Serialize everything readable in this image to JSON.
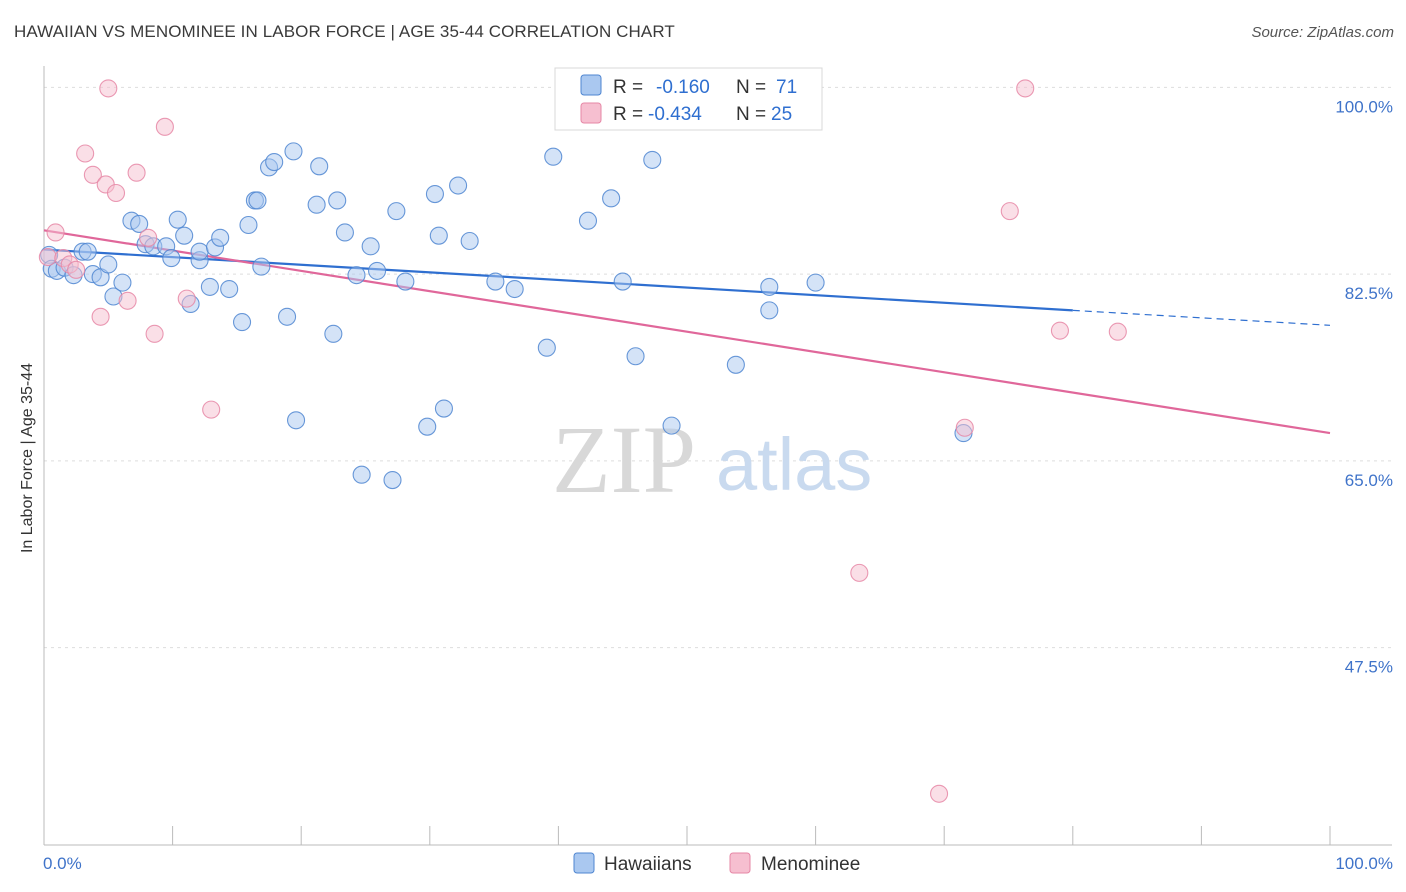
{
  "header": {
    "title": "HAWAIIAN VS MENOMINEE IN LABOR FORCE | AGE 35-44 CORRELATION CHART",
    "source": "Source: ZipAtlas.com"
  },
  "watermark": {
    "zip": "ZIP",
    "atlas": "atlas"
  },
  "colors": {
    "blue_fill": "#aac8f0",
    "blue_stroke": "#4f86d1",
    "blue_line": "#2f6fd0",
    "pink_fill": "#f6bfd0",
    "pink_stroke": "#e687a6",
    "pink_line": "#e0679a",
    "tick_text": "#3f73c9",
    "grid": "#dddddd"
  },
  "legend": {
    "rows": [
      {
        "r_label": "R = ",
        "r_value": "-0.160",
        "n_label": "N = ",
        "n_value": "71"
      },
      {
        "r_label": "R = ",
        "r_value": "-0.434",
        "n_label": "N = ",
        "n_value": "25"
      }
    ]
  },
  "chart_data": {
    "type": "scatter",
    "title": "HAWAIIAN VS MENOMINEE IN LABOR FORCE | AGE 35-44 CORRELATION CHART",
    "xlabel": "",
    "ylabel": "In Labor Force | Age 35-44",
    "xlim": [
      0,
      100
    ],
    "ylim": [
      29,
      102
    ],
    "x_tick_labels": [
      "0.0%",
      "100.0%"
    ],
    "y_ticks": [
      47.5,
      65.0,
      82.5,
      100.0
    ],
    "y_tick_labels": [
      "47.5%",
      "65.0%",
      "82.5%",
      "100.0%"
    ],
    "grid": true,
    "legend_position": "top-center and bottom",
    "series": [
      {
        "name": "Hawaiians",
        "R": -0.16,
        "N": 71,
        "trend": {
          "x0": 0,
          "y0": 84.8,
          "x1": 80,
          "y1": 79.1,
          "dash_to_x": 100,
          "dash_to_y": 77.7
        },
        "points": [
          [
            0.4,
            84.3
          ],
          [
            0.6,
            83.0
          ],
          [
            1.0,
            82.8
          ],
          [
            1.6,
            83.1
          ],
          [
            2.3,
            82.4
          ],
          [
            3.0,
            84.6
          ],
          [
            3.4,
            84.6
          ],
          [
            3.8,
            82.5
          ],
          [
            4.4,
            82.2
          ],
          [
            5.0,
            83.4
          ],
          [
            5.4,
            80.4
          ],
          [
            6.1,
            81.7
          ],
          [
            6.8,
            87.5
          ],
          [
            7.4,
            87.2
          ],
          [
            7.9,
            85.3
          ],
          [
            8.5,
            85.1
          ],
          [
            9.5,
            85.1
          ],
          [
            9.9,
            84.0
          ],
          [
            10.4,
            87.6
          ],
          [
            10.9,
            86.1
          ],
          [
            11.4,
            79.7
          ],
          [
            12.1,
            83.8
          ],
          [
            12.1,
            84.6
          ],
          [
            12.9,
            81.3
          ],
          [
            13.3,
            85.0
          ],
          [
            13.7,
            85.9
          ],
          [
            14.4,
            81.1
          ],
          [
            15.4,
            78.0
          ],
          [
            15.9,
            87.1
          ],
          [
            16.4,
            89.4
          ],
          [
            16.6,
            89.4
          ],
          [
            16.9,
            83.2
          ],
          [
            17.5,
            92.5
          ],
          [
            17.9,
            93.0
          ],
          [
            18.9,
            78.5
          ],
          [
            19.4,
            94.0
          ],
          [
            19.6,
            68.8
          ],
          [
            21.2,
            89.0
          ],
          [
            21.4,
            92.6
          ],
          [
            22.5,
            76.9
          ],
          [
            22.8,
            89.4
          ],
          [
            23.4,
            86.4
          ],
          [
            24.3,
            82.4
          ],
          [
            24.7,
            63.7
          ],
          [
            25.4,
            85.1
          ],
          [
            25.9,
            82.8
          ],
          [
            27.1,
            63.2
          ],
          [
            27.4,
            88.4
          ],
          [
            28.1,
            81.8
          ],
          [
            29.8,
            68.2
          ],
          [
            30.4,
            90.0
          ],
          [
            30.7,
            86.1
          ],
          [
            31.1,
            69.9
          ],
          [
            32.2,
            90.8
          ],
          [
            33.1,
            85.6
          ],
          [
            35.1,
            81.8
          ],
          [
            36.6,
            81.1
          ],
          [
            39.1,
            75.6
          ],
          [
            39.6,
            93.5
          ],
          [
            42.3,
            87.5
          ],
          [
            44.1,
            89.6
          ],
          [
            45.0,
            81.8
          ],
          [
            46.0,
            74.8
          ],
          [
            47.3,
            93.2
          ],
          [
            48.8,
            68.3
          ],
          [
            56.4,
            81.3
          ],
          [
            56.4,
            79.1
          ],
          [
            57.0,
            99.0
          ],
          [
            60.0,
            81.7
          ],
          [
            71.5,
            67.6
          ],
          [
            53.8,
            74.0
          ]
        ]
      },
      {
        "name": "Menominee",
        "R": -0.434,
        "N": 25,
        "trend": {
          "x0": 0,
          "y0": 86.6,
          "x1": 100,
          "y1": 67.6
        },
        "points": [
          [
            0.3,
            84.1
          ],
          [
            0.9,
            86.4
          ],
          [
            1.5,
            84.0
          ],
          [
            2.0,
            83.4
          ],
          [
            2.5,
            82.9
          ],
          [
            3.2,
            93.8
          ],
          [
            3.8,
            91.8
          ],
          [
            4.4,
            78.5
          ],
          [
            4.8,
            90.9
          ],
          [
            5.0,
            99.9
          ],
          [
            5.6,
            90.1
          ],
          [
            6.5,
            80.0
          ],
          [
            7.2,
            92.0
          ],
          [
            8.1,
            85.9
          ],
          [
            8.6,
            76.9
          ],
          [
            9.4,
            96.3
          ],
          [
            11.1,
            80.2
          ],
          [
            13.0,
            69.8
          ],
          [
            63.4,
            54.5
          ],
          [
            69.6,
            33.8
          ],
          [
            71.6,
            68.1
          ],
          [
            75.1,
            88.4
          ],
          [
            76.3,
            99.9
          ],
          [
            79.0,
            77.2
          ],
          [
            83.5,
            77.1
          ]
        ]
      }
    ]
  }
}
